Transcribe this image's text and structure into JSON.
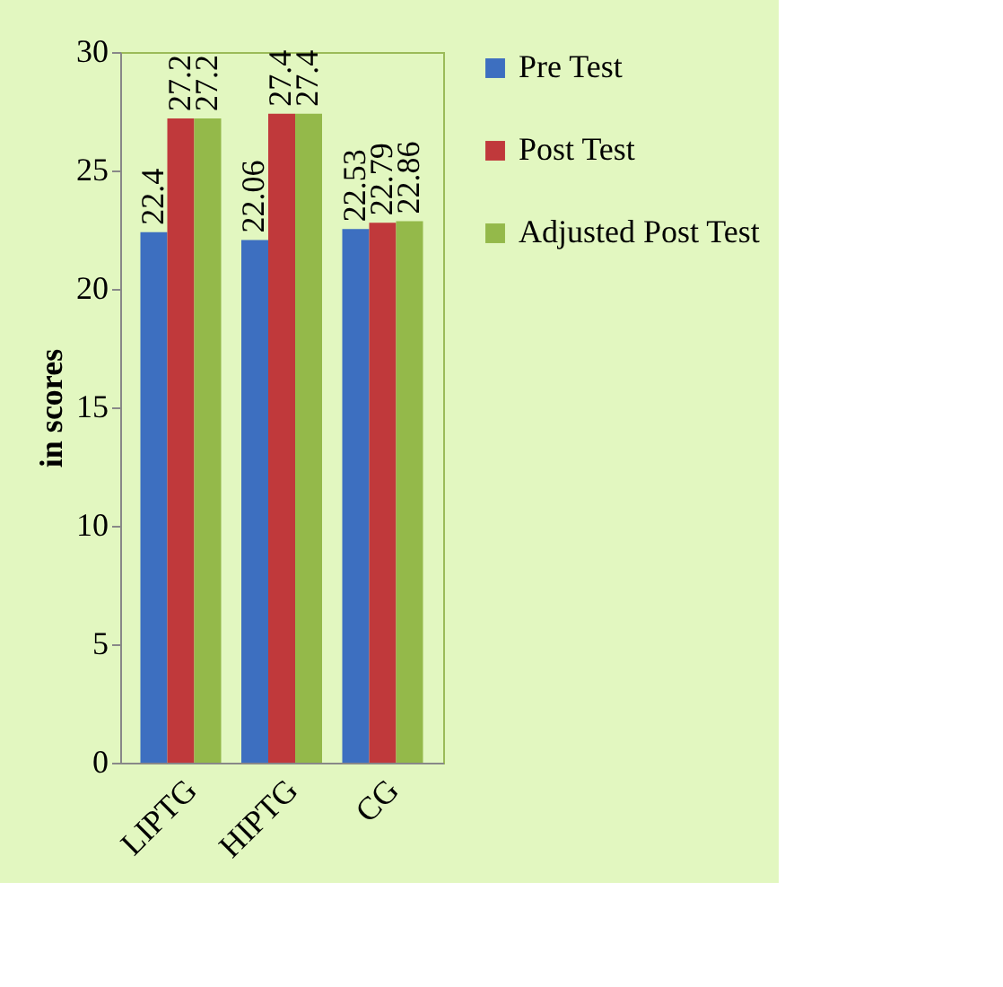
{
  "chart_data": {
    "type": "bar",
    "ylabel": "in scores",
    "categories": [
      "LIPTG",
      "HIPTG",
      "CG"
    ],
    "series": [
      {
        "name": "Pre Test",
        "color": "#3d6fc0",
        "values": [
          22.4,
          22.06,
          22.53
        ]
      },
      {
        "name": "Post Test",
        "color": "#c0393b",
        "values": [
          27.2,
          27.4,
          22.79
        ]
      },
      {
        "name": "Adjusted Post Test",
        "color": "#94b94a",
        "values": [
          27.2,
          27.4,
          22.86
        ]
      }
    ],
    "ylim": [
      0,
      30
    ],
    "yticks": [
      0,
      5,
      10,
      15,
      20,
      25,
      30
    ],
    "data_labels": true,
    "legend": "right",
    "grid": false
  }
}
